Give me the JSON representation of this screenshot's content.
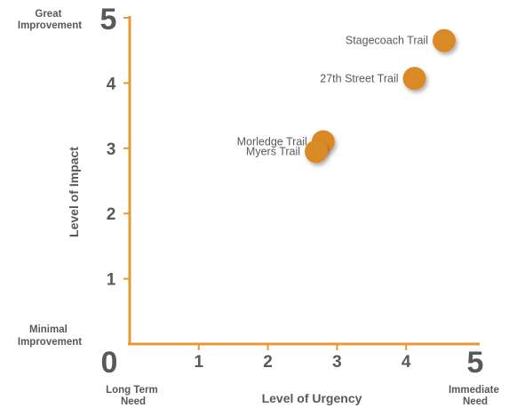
{
  "chart_data": {
    "type": "scatter",
    "title": "",
    "xlabel": "Level of Urgency",
    "ylabel": "Level of Impact",
    "xlim": [
      0,
      5
    ],
    "ylim": [
      0,
      5
    ],
    "x_ticks": [
      "0",
      "1",
      "2",
      "3",
      "4",
      "5"
    ],
    "y_ticks": [
      "1",
      "2",
      "3",
      "4",
      "5"
    ],
    "grid": false,
    "legend": "none",
    "annotations": {
      "y_top": [
        "Great",
        "Improvement"
      ],
      "y_bottom": [
        "Minimal",
        "Improvement"
      ],
      "x_left": [
        "Long Term",
        "Need"
      ],
      "x_right": [
        "Immediate",
        "Need"
      ]
    },
    "colors": {
      "axis": "#e69a36",
      "marker": "#d98a25",
      "text": "#595959"
    },
    "points": [
      {
        "label": "Stagecoach Trail",
        "x": 4.55,
        "y": 4.65
      },
      {
        "label": "27th Street Trail",
        "x": 4.12,
        "y": 4.07
      },
      {
        "label": "Morledge Trail",
        "x": 2.8,
        "y": 3.1
      },
      {
        "label": "Myers Trail",
        "x": 2.7,
        "y": 2.95
      }
    ]
  }
}
